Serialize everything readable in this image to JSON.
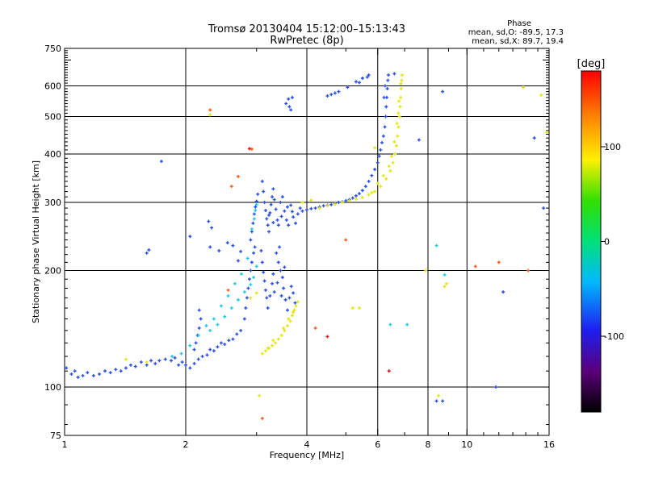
{
  "chart_data": {
    "type": "scatter",
    "title": "Tromsø 20130404 15:12:00–15:13:43",
    "subtitle": "RwPretec (8p)",
    "xlabel": "Frequency [MHz]",
    "ylabel": "Stationary phase Virtual Height [km]",
    "x_scale": "log",
    "y_scale": "log",
    "xlim": [
      1,
      16
    ],
    "ylim": [
      75,
      750
    ],
    "x_ticks": [
      1,
      2,
      4,
      6,
      8,
      10,
      16
    ],
    "y_ticks": [
      75,
      100,
      200,
      300,
      400,
      500,
      600,
      750
    ],
    "x_gridlines": [
      2,
      4,
      6,
      8,
      10
    ],
    "y_gridlines": [
      100,
      200,
      300,
      400,
      500,
      600
    ],
    "grid": true,
    "stats": {
      "heading": "Phase",
      "line_O": "mean, sd,O: -89.5, 17.3",
      "line_X": "mean, sd,X:  89.7, 19.4"
    },
    "colorbar": {
      "label": "[deg]",
      "range": [
        -180,
        180
      ],
      "ticks": [
        100,
        0,
        -100
      ],
      "tick_labels": [
        "100",
        "0",
        "-100"
      ]
    },
    "series": [
      {
        "phase": -90,
        "color": "#2a4ee0",
        "points": [
          [
            1.01,
            112
          ],
          [
            1.04,
            108
          ],
          [
            1.06,
            110
          ],
          [
            1.08,
            106
          ],
          [
            1.11,
            107
          ],
          [
            1.14,
            109
          ],
          [
            1.18,
            107
          ],
          [
            1.22,
            108
          ],
          [
            1.26,
            110
          ],
          [
            1.3,
            109
          ],
          [
            1.34,
            111
          ],
          [
            1.38,
            110
          ],
          [
            1.42,
            112
          ],
          [
            1.46,
            114
          ],
          [
            1.5,
            113
          ],
          [
            1.55,
            116
          ],
          [
            1.6,
            114
          ],
          [
            1.64,
            117
          ],
          [
            1.68,
            115
          ],
          [
            1.72,
            117
          ],
          [
            1.78,
            118
          ],
          [
            1.84,
            117
          ],
          [
            1.88,
            119
          ],
          [
            1.92,
            114
          ],
          [
            1.96,
            116
          ],
          [
            2.0,
            114
          ],
          [
            2.05,
            112
          ],
          [
            2.1,
            115
          ],
          [
            2.15,
            118
          ],
          [
            2.2,
            120
          ],
          [
            2.26,
            121
          ],
          [
            2.3,
            125
          ],
          [
            2.35,
            124
          ],
          [
            2.4,
            127
          ],
          [
            2.45,
            130
          ],
          [
            2.5,
            129
          ],
          [
            2.56,
            132
          ],
          [
            2.62,
            133
          ],
          [
            2.68,
            137
          ],
          [
            2.74,
            140
          ],
          [
            2.1,
            125
          ],
          [
            2.12,
            130
          ],
          [
            2.14,
            136
          ],
          [
            2.16,
            142
          ],
          [
            2.18,
            150
          ],
          [
            2.16,
            158
          ],
          [
            2.8,
            150
          ],
          [
            2.82,
            160
          ],
          [
            2.84,
            170
          ],
          [
            2.86,
            180
          ],
          [
            2.88,
            190
          ],
          [
            2.9,
            200
          ],
          [
            2.92,
            210
          ],
          [
            2.95,
            222
          ],
          [
            2.97,
            230
          ],
          [
            2.9,
            240
          ],
          [
            2.92,
            252
          ],
          [
            2.94,
            265
          ],
          [
            2.96,
            280
          ],
          [
            2.98,
            292
          ],
          [
            3.0,
            302
          ],
          [
            3.02,
            315
          ],
          [
            2.7,
            212
          ],
          [
            2.74,
            224
          ],
          [
            2.62,
            232
          ],
          [
            2.54,
            236
          ],
          [
            2.42,
            225
          ],
          [
            2.3,
            230
          ],
          [
            2.28,
            268
          ],
          [
            2.32,
            258
          ],
          [
            3.1,
            340
          ],
          [
            3.12,
            320
          ],
          [
            3.14,
            300
          ],
          [
            3.16,
            286
          ],
          [
            3.18,
            272
          ],
          [
            3.2,
            262
          ],
          [
            3.22,
            252
          ],
          [
            3.24,
            282
          ],
          [
            3.26,
            296
          ],
          [
            3.28,
            310
          ],
          [
            3.3,
            325
          ],
          [
            3.32,
            305
          ],
          [
            3.35,
            288
          ],
          [
            3.38,
            270
          ],
          [
            3.4,
            262
          ],
          [
            3.44,
            300
          ],
          [
            3.48,
            310
          ],
          [
            3.52,
            285
          ],
          [
            3.56,
            270
          ],
          [
            3.6,
            262
          ],
          [
            3.65,
            295
          ],
          [
            3.7,
            275
          ],
          [
            3.75,
            265
          ],
          [
            3.8,
            280
          ],
          [
            3.85,
            290
          ],
          [
            3.22,
            278
          ],
          [
            3.3,
            266
          ],
          [
            3.46,
            276
          ],
          [
            3.58,
            292
          ],
          [
            3.68,
            284
          ],
          [
            3.08,
            225
          ],
          [
            3.1,
            210
          ],
          [
            3.12,
            198
          ],
          [
            3.14,
            188
          ],
          [
            3.16,
            178
          ],
          [
            3.18,
            170
          ],
          [
            3.2,
            160
          ],
          [
            3.24,
            172
          ],
          [
            3.28,
            185
          ],
          [
            3.32,
            176
          ],
          [
            3.36,
            222
          ],
          [
            3.4,
            210
          ],
          [
            3.44,
            200
          ],
          [
            3.48,
            192
          ],
          [
            3.5,
            180
          ],
          [
            3.54,
            168
          ],
          [
            3.58,
            158
          ],
          [
            3.62,
            170
          ],
          [
            3.66,
            182
          ],
          [
            3.7,
            175
          ],
          [
            3.74,
            165
          ],
          [
            3.38,
            186
          ],
          [
            3.46,
            172
          ],
          [
            3.52,
            204
          ],
          [
            3.42,
            230
          ],
          [
            3.3,
            196
          ],
          [
            3.9,
            285
          ],
          [
            4.0,
            287
          ],
          [
            4.1,
            289
          ],
          [
            4.2,
            290
          ],
          [
            4.3,
            292
          ],
          [
            4.4,
            294
          ],
          [
            4.5,
            295
          ],
          [
            4.6,
            296
          ],
          [
            4.7,
            298
          ],
          [
            4.8,
            300
          ],
          [
            4.9,
            301
          ],
          [
            5.0,
            303
          ],
          [
            5.1,
            305
          ],
          [
            5.2,
            308
          ],
          [
            5.3,
            312
          ],
          [
            5.4,
            316
          ],
          [
            5.5,
            322
          ],
          [
            5.6,
            330
          ],
          [
            5.7,
            340
          ],
          [
            5.8,
            352
          ],
          [
            5.9,
            365
          ],
          [
            6.0,
            380
          ],
          [
            6.05,
            395
          ],
          [
            6.1,
            410
          ],
          [
            6.15,
            428
          ],
          [
            6.2,
            445
          ],
          [
            6.25,
            470
          ],
          [
            6.28,
            500
          ],
          [
            6.3,
            530
          ],
          [
            6.32,
            560
          ],
          [
            6.34,
            590
          ],
          [
            6.36,
            620
          ],
          [
            6.38,
            640
          ],
          [
            6.22,
            560
          ],
          [
            6.26,
            600
          ],
          [
            3.55,
            540
          ],
          [
            3.6,
            555
          ],
          [
            3.65,
            520
          ],
          [
            3.68,
            560
          ],
          [
            3.62,
            530
          ],
          [
            4.5,
            565
          ],
          [
            4.6,
            570
          ],
          [
            4.7,
            575
          ],
          [
            4.8,
            580
          ],
          [
            5.05,
            595
          ],
          [
            5.3,
            615
          ],
          [
            5.5,
            628
          ],
          [
            5.7,
            640
          ],
          [
            5.65,
            632
          ],
          [
            5.4,
            612
          ],
          [
            1.6,
            222
          ],
          [
            1.62,
            226
          ],
          [
            1.74,
            383
          ],
          [
            2.05,
            245
          ],
          [
            8.4,
            92
          ],
          [
            8.7,
            92
          ],
          [
            7.6,
            435
          ],
          [
            8.7,
            580
          ],
          [
            11.8,
            100
          ],
          [
            12.3,
            176
          ],
          [
            14.7,
            440
          ],
          [
            15.5,
            290
          ],
          [
            6.6,
            645
          ]
        ]
      },
      {
        "phase": 90,
        "color": "#e3e60e",
        "points": [
          [
            3.1,
            122
          ],
          [
            3.16,
            124
          ],
          [
            3.22,
            126
          ],
          [
            3.28,
            128
          ],
          [
            3.34,
            130
          ],
          [
            3.4,
            133
          ],
          [
            3.46,
            136
          ],
          [
            3.52,
            140
          ],
          [
            3.58,
            144
          ],
          [
            3.64,
            148
          ],
          [
            3.68,
            153
          ],
          [
            3.72,
            158
          ],
          [
            3.76,
            162
          ],
          [
            3.8,
            166
          ],
          [
            3.5,
            142
          ],
          [
            3.6,
            150
          ],
          [
            3.7,
            156
          ],
          [
            3.3,
            132
          ],
          [
            3.2,
            126
          ],
          [
            4.3,
            290
          ],
          [
            4.5,
            294
          ],
          [
            4.7,
            297
          ],
          [
            4.9,
            300
          ],
          [
            5.1,
            303
          ],
          [
            5.3,
            306
          ],
          [
            5.5,
            309
          ],
          [
            5.7,
            314
          ],
          [
            5.9,
            320
          ],
          [
            6.1,
            330
          ],
          [
            6.3,
            345
          ],
          [
            6.45,
            362
          ],
          [
            6.55,
            380
          ],
          [
            6.62,
            400
          ],
          [
            6.68,
            420
          ],
          [
            6.72,
            445
          ],
          [
            6.76,
            470
          ],
          [
            6.8,
            500
          ],
          [
            6.82,
            530
          ],
          [
            6.84,
            560
          ],
          [
            6.86,
            590
          ],
          [
            6.88,
            620
          ],
          [
            6.9,
            640
          ],
          [
            6.75,
            510
          ],
          [
            6.7,
            480
          ],
          [
            6.6,
            430
          ],
          [
            6.5,
            395
          ],
          [
            6.4,
            372
          ],
          [
            6.2,
            352
          ],
          [
            6.0,
            336
          ],
          [
            3.9,
            300
          ],
          [
            4.1,
            304
          ],
          [
            5.8,
            318
          ],
          [
            6.85,
            608
          ],
          [
            6.78,
            548
          ],
          [
            1.42,
            118
          ],
          [
            1.6,
            116
          ],
          [
            2.9,
            170
          ],
          [
            3.0,
            175
          ],
          [
            3.05,
            95
          ],
          [
            5.2,
            160
          ],
          [
            5.4,
            160
          ],
          [
            7.9,
            200
          ],
          [
            8.8,
            182
          ],
          [
            8.9,
            185
          ],
          [
            8.5,
            95
          ],
          [
            2.3,
            505
          ],
          [
            13.8,
            595
          ],
          [
            15.8,
            455
          ],
          [
            15.3,
            568
          ],
          [
            5.9,
            415
          ]
        ]
      },
      {
        "phase": -10,
        "color": "#1ec9e6",
        "points": [
          [
            2.3,
            140
          ],
          [
            2.4,
            145
          ],
          [
            2.5,
            152
          ],
          [
            2.6,
            160
          ],
          [
            2.7,
            168
          ],
          [
            2.8,
            176
          ],
          [
            2.9,
            184
          ],
          [
            2.95,
            192
          ],
          [
            3.0,
            205
          ],
          [
            2.85,
            215
          ],
          [
            2.75,
            196
          ],
          [
            2.65,
            185
          ],
          [
            2.55,
            172
          ],
          [
            2.45,
            162
          ],
          [
            2.35,
            150
          ],
          [
            2.25,
            144
          ],
          [
            2.15,
            136
          ],
          [
            2.05,
            128
          ],
          [
            1.95,
            122
          ],
          [
            1.85,
            120
          ],
          [
            2.92,
            256
          ],
          [
            2.96,
            272
          ],
          [
            2.98,
            286
          ],
          [
            3.0,
            296
          ],
          [
            8.4,
            232
          ],
          [
            8.8,
            195
          ],
          [
            7.1,
            145
          ],
          [
            6.45,
            145
          ]
        ]
      },
      {
        "phase": 150,
        "color": "#ff5a1a",
        "points": [
          [
            2.6,
            330
          ],
          [
            2.7,
            350
          ],
          [
            2.92,
            412
          ],
          [
            2.3,
            520
          ],
          [
            10.5,
            205
          ],
          [
            12.0,
            210
          ],
          [
            14.2,
            200
          ],
          [
            5.0,
            240
          ],
          [
            4.2,
            142
          ],
          [
            2.55,
            178
          ],
          [
            3.1,
            83
          ]
        ]
      },
      {
        "phase": 170,
        "color": "#e81010",
        "points": [
          [
            6.4,
            110
          ],
          [
            2.88,
            413
          ],
          [
            4.5,
            135
          ]
        ]
      }
    ]
  }
}
